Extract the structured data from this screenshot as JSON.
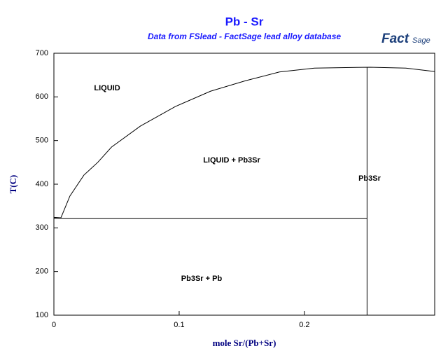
{
  "chart_data": {
    "type": "line",
    "title": "Pb - Sr",
    "subtitle": "Data from FSlead - FactSage lead alloy database",
    "logo": {
      "main": "Fact",
      "sub": "Sage"
    },
    "x_label": "mole Sr/(Pb+Sr)",
    "y_label": "T(C)",
    "xlim": [
      0,
      0.304
    ],
    "ylim": [
      100,
      700
    ],
    "xticks": [
      0,
      0.1,
      0.2
    ],
    "yticks": [
      100,
      200,
      300,
      400,
      500,
      600,
      700
    ],
    "series": [
      {
        "color": "#000000",
        "x": [
          0,
          0.0056,
          0.0128,
          0.024,
          0.035,
          0.046,
          0.069,
          0.097,
          0.125,
          0.153,
          0.18,
          0.208,
          0.2525,
          0.281,
          0.304
        ],
        "values": [
          324,
          323,
          373,
          421,
          450,
          485,
          533,
          578,
          613,
          637,
          657,
          666,
          668,
          666,
          658
        ]
      },
      {
        "color": "#000000",
        "x": [
          0,
          0.25
        ],
        "values": [
          322,
          322
        ]
      },
      {
        "color": "#000000",
        "x": [
          0.25,
          0.25
        ],
        "values": [
          100,
          668
        ]
      }
    ],
    "annotations": [
      "LIQUID",
      "LIQUID + Pb3Sr",
      "Pb3Sr",
      "Pb3Sr + Pb"
    ]
  }
}
